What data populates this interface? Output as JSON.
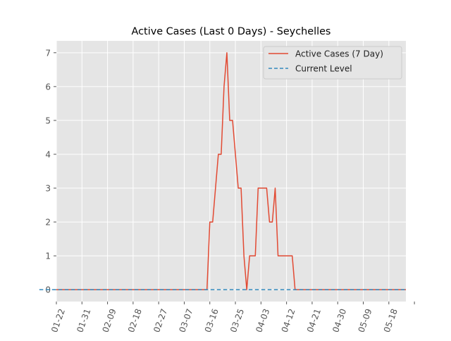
{
  "chart_data": {
    "type": "line",
    "title": "Active Cases (Last 0 Days) - Seychelles",
    "xlabel": "",
    "ylabel": "",
    "x_range": [
      "2020-01-22",
      "2020-05-24"
    ],
    "ylim": [
      -0.35,
      7.35
    ],
    "yticks": [
      0,
      1,
      2,
      3,
      4,
      5,
      6,
      7
    ],
    "xtick_dates": [
      "2020-01-22",
      "2020-01-31",
      "2020-02-09",
      "2020-02-18",
      "2020-02-27",
      "2020-03-07",
      "2020-03-16",
      "2020-03-25",
      "2020-04-03",
      "2020-04-12",
      "2020-04-21",
      "2020-04-30",
      "2020-05-09",
      "2020-05-18",
      "2020-05-27"
    ],
    "xtick_labels": [
      "01-22",
      "01-31",
      "02-09",
      "02-18",
      "02-27",
      "03-07",
      "03-16",
      "03-25",
      "04-03",
      "04-12",
      "04-21",
      "04-30",
      "05-09",
      "05-18",
      ""
    ],
    "grid": true,
    "legend": "top-right",
    "colors": {
      "plot_bg": "#e5e5e5",
      "grid": "#ffffff",
      "series_active": "#e24a33",
      "series_level": "#348abd",
      "tick": "#555555",
      "title": "#000000"
    },
    "series": [
      {
        "name": "Active Cases (7 Day)",
        "style": "solid",
        "points": [
          [
            "2020-01-22",
            0
          ],
          [
            "2020-03-15",
            0
          ],
          [
            "2020-03-16",
            2
          ],
          [
            "2020-03-17",
            2
          ],
          [
            "2020-03-18",
            3
          ],
          [
            "2020-03-19",
            4
          ],
          [
            "2020-03-20",
            4
          ],
          [
            "2020-03-21",
            6
          ],
          [
            "2020-03-22",
            7
          ],
          [
            "2020-03-23",
            5
          ],
          [
            "2020-03-24",
            5
          ],
          [
            "2020-03-25",
            4
          ],
          [
            "2020-03-26",
            3
          ],
          [
            "2020-03-27",
            3
          ],
          [
            "2020-03-28",
            1
          ],
          [
            "2020-03-29",
            0
          ],
          [
            "2020-03-30",
            1
          ],
          [
            "2020-03-31",
            1
          ],
          [
            "2020-04-01",
            1
          ],
          [
            "2020-04-02",
            3
          ],
          [
            "2020-04-03",
            3
          ],
          [
            "2020-04-04",
            3
          ],
          [
            "2020-04-05",
            3
          ],
          [
            "2020-04-06",
            2
          ],
          [
            "2020-04-07",
            2
          ],
          [
            "2020-04-08",
            3
          ],
          [
            "2020-04-09",
            1
          ],
          [
            "2020-04-10",
            1
          ],
          [
            "2020-04-11",
            1
          ],
          [
            "2020-04-12",
            1
          ],
          [
            "2020-04-13",
            1
          ],
          [
            "2020-04-14",
            1
          ],
          [
            "2020-04-15",
            0
          ],
          [
            "2020-05-24",
            0
          ]
        ]
      },
      {
        "name": "Current Level",
        "style": "dashed",
        "points": [
          [
            "2020-01-16",
            0
          ],
          [
            "2020-05-24",
            0
          ]
        ]
      }
    ]
  }
}
